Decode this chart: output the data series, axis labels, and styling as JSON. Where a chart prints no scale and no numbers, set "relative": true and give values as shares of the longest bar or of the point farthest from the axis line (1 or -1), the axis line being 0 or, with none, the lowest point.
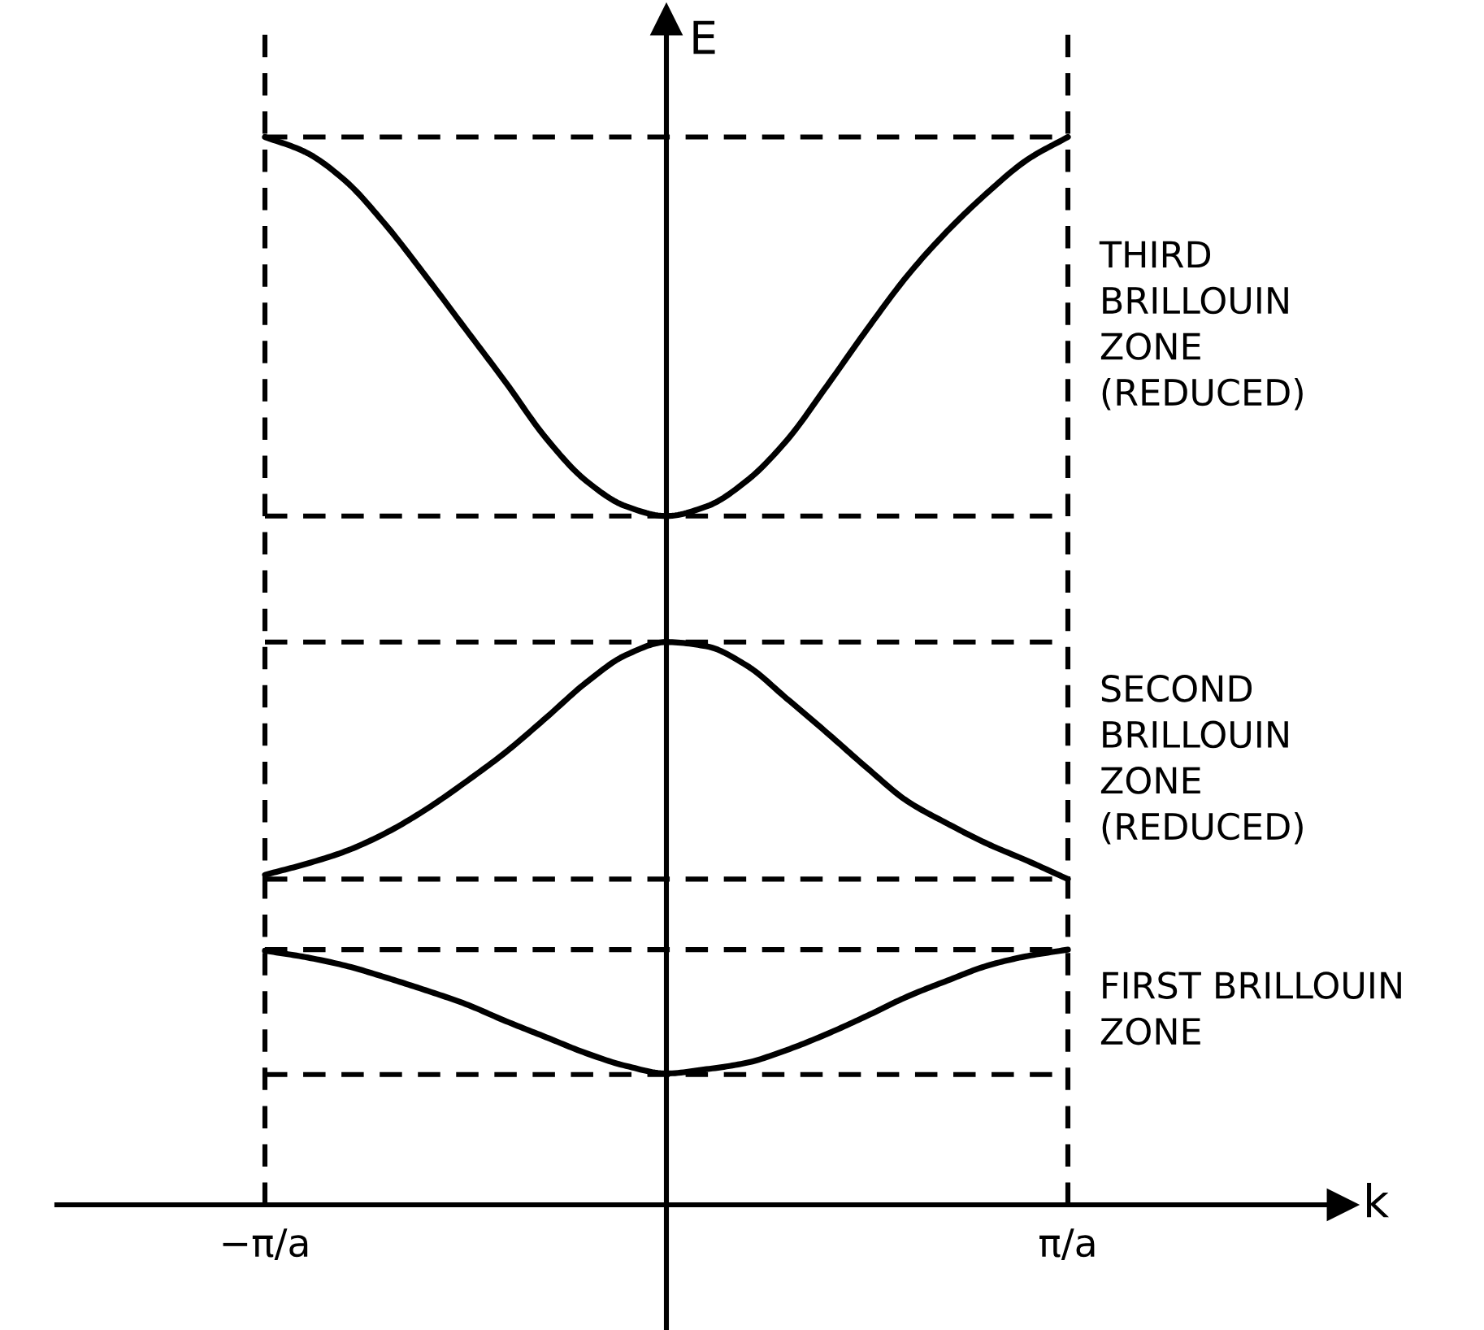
{
  "chart_data": {
    "type": "line",
    "relative": true,
    "ylabel": "E",
    "categories": [
      "−π/a",
      null,
      null,
      null,
      null,
      null,
      null,
      null,
      null,
      null,
      null,
      null,
      null,
      null,
      null,
      null,
      null,
      null,
      null,
      null,
      "π/a"
    ],
    "series": [
      {
        "name": "THIRD\nBRILLOUIN\nZONE\n(REDUCED)",
        "color": "#000000",
        "values": [
          1.0,
          0.986,
          0.959,
          0.918,
          0.87,
          0.82,
          0.77,
          0.718,
          0.678,
          0.654,
          0.645,
          0.654,
          0.678,
          0.716,
          0.767,
          0.82,
          0.87,
          0.912,
          0.948,
          0.979,
          1.0
        ]
      },
      {
        "name": "SECOND\nBRILLOUIN\nZONE\n(REDUCED)",
        "color": "#000000",
        "values": [
          0.309,
          0.319,
          0.331,
          0.348,
          0.37,
          0.396,
          0.424,
          0.456,
          0.489,
          0.515,
          0.527,
          0.523,
          0.505,
          0.474,
          0.442,
          0.409,
          0.378,
          0.357,
          0.338,
          0.322,
          0.305
        ]
      },
      {
        "name": "FIRST BRILLOUIN\nZONE",
        "color": "#000000",
        "values": [
          0.238,
          0.232,
          0.224,
          0.213,
          0.201,
          0.188,
          0.172,
          0.157,
          0.142,
          0.13,
          0.123,
          0.127,
          0.133,
          0.145,
          0.16,
          0.177,
          0.195,
          0.21,
          0.224,
          0.233,
          0.239
        ]
      }
    ],
    "ref_lines": [
      {
        "axis": "y",
        "value": 1.0,
        "line_style": "dashed",
        "color": "#000000"
      },
      {
        "axis": "y",
        "value": 0.645,
        "line_style": "dashed",
        "color": "#000000"
      },
      {
        "axis": "y",
        "value": 0.527,
        "line_style": "dashed",
        "color": "#000000"
      },
      {
        "axis": "y",
        "value": 0.305,
        "line_style": "dashed",
        "color": "#000000"
      },
      {
        "axis": "y",
        "value": 0.239,
        "line_style": "dashed",
        "color": "#000000"
      },
      {
        "axis": "y",
        "value": 0.122,
        "line_style": "dashed",
        "color": "#000000"
      },
      {
        "axis": "x",
        "value": "−π/a",
        "line_style": "dashed",
        "color": "#000000"
      },
      {
        "axis": "x",
        "value": "π/a",
        "line_style": "dashed",
        "color": "#000000"
      }
    ],
    "annotations": [
      "k"
    ]
  }
}
